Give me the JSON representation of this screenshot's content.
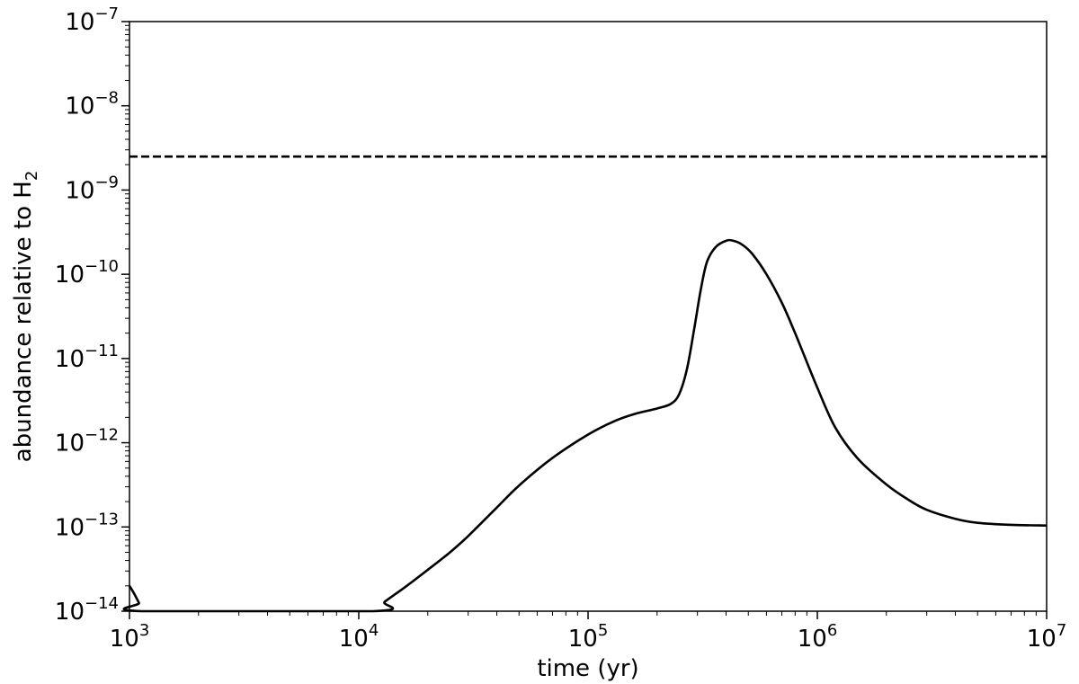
{
  "chart_data": {
    "type": "line",
    "title": "",
    "xlabel": "time (yr)",
    "ylabel": "abundance relative to H",
    "ylabel_subscript": "2",
    "xscale": "log",
    "yscale": "log",
    "xlim": [
      1000,
      10000000
    ],
    "ylim": [
      1e-14,
      1e-07
    ],
    "x_tick_labels": [
      {
        "base": "10",
        "exp": "3"
      },
      {
        "base": "10",
        "exp": "4"
      },
      {
        "base": "10",
        "exp": "5"
      },
      {
        "base": "10",
        "exp": "6"
      },
      {
        "base": "10",
        "exp": "7"
      }
    ],
    "y_tick_labels": [
      {
        "base": "10",
        "exp": "−14"
      },
      {
        "base": "10",
        "exp": "−13"
      },
      {
        "base": "10",
        "exp": "−12"
      },
      {
        "base": "10",
        "exp": "−11"
      },
      {
        "base": "10",
        "exp": "−10"
      },
      {
        "base": "10",
        "exp": "−9"
      },
      {
        "base": "10",
        "exp": "−8"
      },
      {
        "base": "10",
        "exp": "−7"
      }
    ],
    "grid": false,
    "legend": "none",
    "series": [
      {
        "style": "solid",
        "color": "#000000",
        "x": [
          1000,
          1050,
          1100,
          1130,
          11500,
          13000,
          16000,
          20000,
          25000,
          30000,
          40000,
          50000,
          70000,
          100000,
          130000,
          160000,
          200000,
          230000,
          250000,
          270000,
          290000,
          310000,
          330000,
          360000,
          400000,
          430000,
          470000,
          520000,
          600000,
          700000,
          800000,
          1000000,
          1200000,
          1500000,
          2000000,
          2500000,
          3000000,
          4000000,
          5000000,
          7000000,
          10000000
        ],
        "y": [
          2e-14,
          1.6e-14,
          1.25e-14,
          1e-14,
          1e-14,
          1.3e-14,
          1.95e-14,
          3.1e-14,
          5e-14,
          7.8e-14,
          1.7e-13,
          3.1e-13,
          6.6e-13,
          1.25e-12,
          1.8e-12,
          2.2e-12,
          2.55e-12,
          2.9e-12,
          3.8e-12,
          7.5e-12,
          2.2e-11,
          6.5e-11,
          1.4e-10,
          2.1e-10,
          2.5e-10,
          2.5e-10,
          2.25e-10,
          1.75e-10,
          1e-10,
          4.6e-11,
          2e-11,
          4.5e-12,
          1.5e-12,
          6.5e-13,
          3.2e-13,
          2.1e-13,
          1.6e-13,
          1.25e-13,
          1.12e-13,
          1.06e-13,
          1.04e-13
        ]
      },
      {
        "style": "dashed",
        "color": "#000000",
        "x": [
          1000,
          10000000
        ],
        "y": [
          2.5e-09,
          2.5e-09
        ]
      }
    ]
  }
}
